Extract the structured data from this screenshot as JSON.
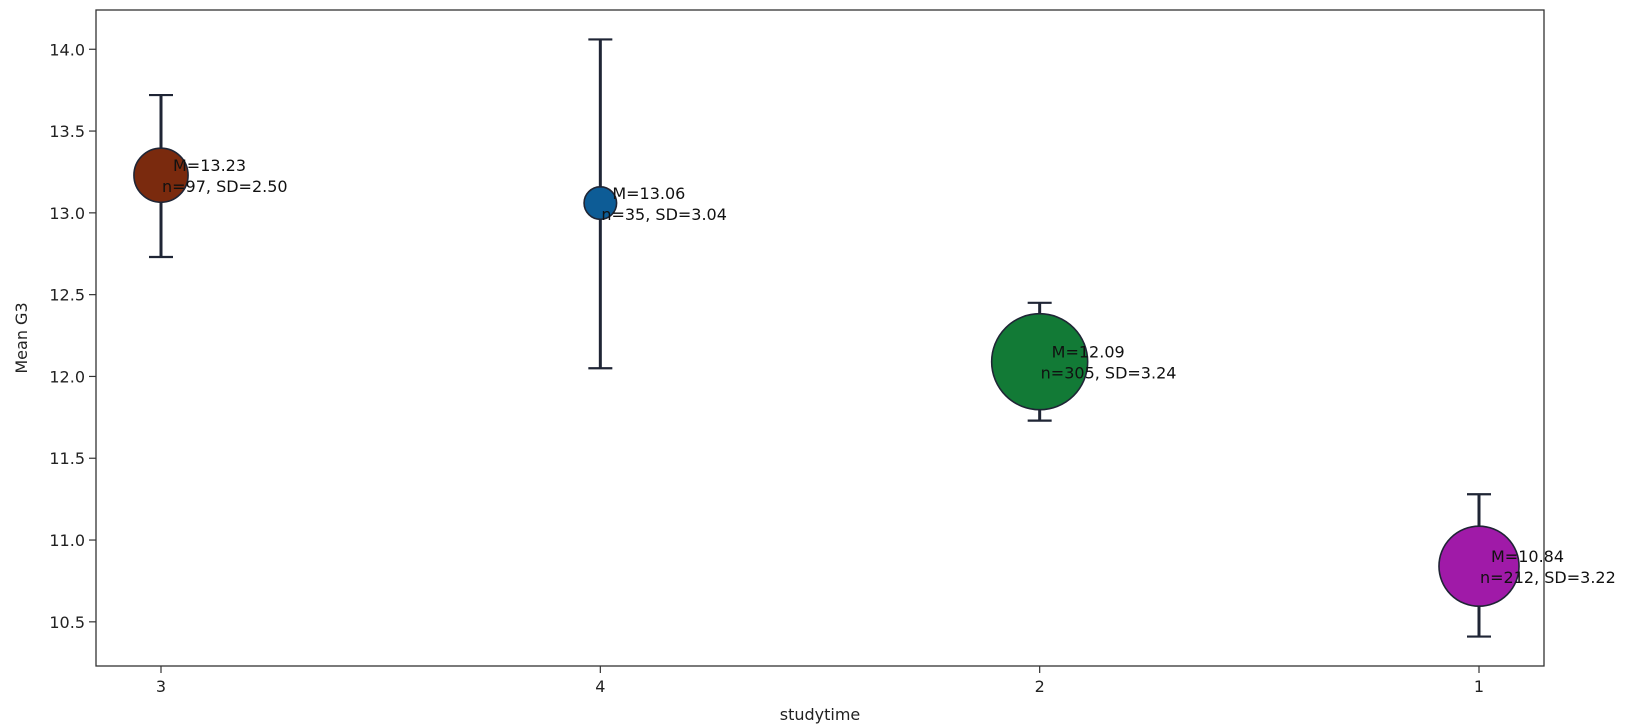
{
  "chart_data": {
    "type": "scatter",
    "title": "",
    "xlabel": "studytime",
    "ylabel": "Mean G3",
    "categories": [
      "3",
      "4",
      "2",
      "1"
    ],
    "y_ticks": [
      "10.5",
      "11.0",
      "11.5",
      "12.0",
      "12.5",
      "13.0",
      "13.5",
      "14.0"
    ],
    "ylim": [
      10.23,
      14.24
    ],
    "grid": false,
    "points": [
      {
        "category": "3",
        "mean": 13.23,
        "n": 97,
        "sd": 2.5,
        "ci_low": 12.73,
        "ci_high": 13.72,
        "color": "#7a2a0e",
        "label_mean": "M=13.23",
        "label_stats": "n=97, SD=2.50"
      },
      {
        "category": "4",
        "mean": 13.06,
        "n": 35,
        "sd": 3.04,
        "ci_low": 12.05,
        "ci_high": 14.06,
        "color": "#0d5c96",
        "label_mean": "M=13.06",
        "label_stats": "n=35, SD=3.04"
      },
      {
        "category": "2",
        "mean": 12.09,
        "n": 305,
        "sd": 3.24,
        "ci_low": 11.73,
        "ci_high": 12.45,
        "color": "#127a36",
        "label_mean": "M=12.09",
        "label_stats": "n=305, SD=3.24"
      },
      {
        "category": "1",
        "mean": 10.84,
        "n": 212,
        "sd": 3.22,
        "ci_low": 10.41,
        "ci_high": 11.28,
        "color": "#a01aa8",
        "label_mean": "M=10.84",
        "label_stats": "n=212, SD=3.22"
      }
    ]
  }
}
